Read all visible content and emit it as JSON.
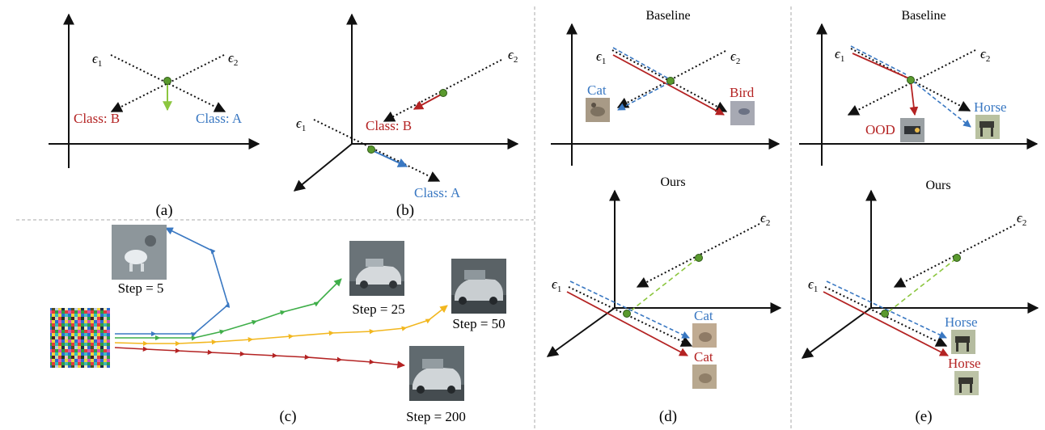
{
  "colors": {
    "red": "#b42323",
    "blue": "#3a78c2",
    "green": "#3fae49",
    "light_green": "#8cc63f",
    "yellow": "#f2b71f",
    "dot": "#5a9a2e",
    "axis": "#111111",
    "divider": "#aaaaaa"
  },
  "panels": {
    "a": {
      "caption": "(a)",
      "eps1": "ϵ",
      "eps1_sub": "1",
      "eps2": "ϵ",
      "eps2_sub": "2",
      "class_b": "Class: B",
      "class_a": "Class: A"
    },
    "b": {
      "caption": "(b)",
      "eps1": "ϵ",
      "eps1_sub": "1",
      "eps2": "ϵ",
      "eps2_sub": "2",
      "class_b": "Class: B",
      "class_a": "Class: A"
    },
    "c": {
      "caption": "(c)",
      "steps": [
        "Step = 5",
        "Step = 25",
        "Step = 50",
        "Step = 200"
      ]
    },
    "d": {
      "caption": "(d)",
      "baseline_title": "Baseline",
      "ours_title": "Ours",
      "eps1": "ϵ",
      "eps1_sub": "1",
      "eps2": "ϵ",
      "eps2_sub": "2",
      "baseline_blue_label": "Cat",
      "baseline_red_label": "Bird",
      "ours_blue_label": "Cat",
      "ours_red_label": "Cat"
    },
    "e": {
      "caption": "(e)",
      "baseline_title": "Baseline",
      "ours_title": "Ours",
      "eps1": "ϵ",
      "eps1_sub": "1",
      "eps2": "ϵ",
      "eps2_sub": "2",
      "baseline_blue_label": "Horse",
      "baseline_red_label": "OOD",
      "ours_blue_label": "Horse",
      "ours_red_label": "Horse"
    }
  }
}
